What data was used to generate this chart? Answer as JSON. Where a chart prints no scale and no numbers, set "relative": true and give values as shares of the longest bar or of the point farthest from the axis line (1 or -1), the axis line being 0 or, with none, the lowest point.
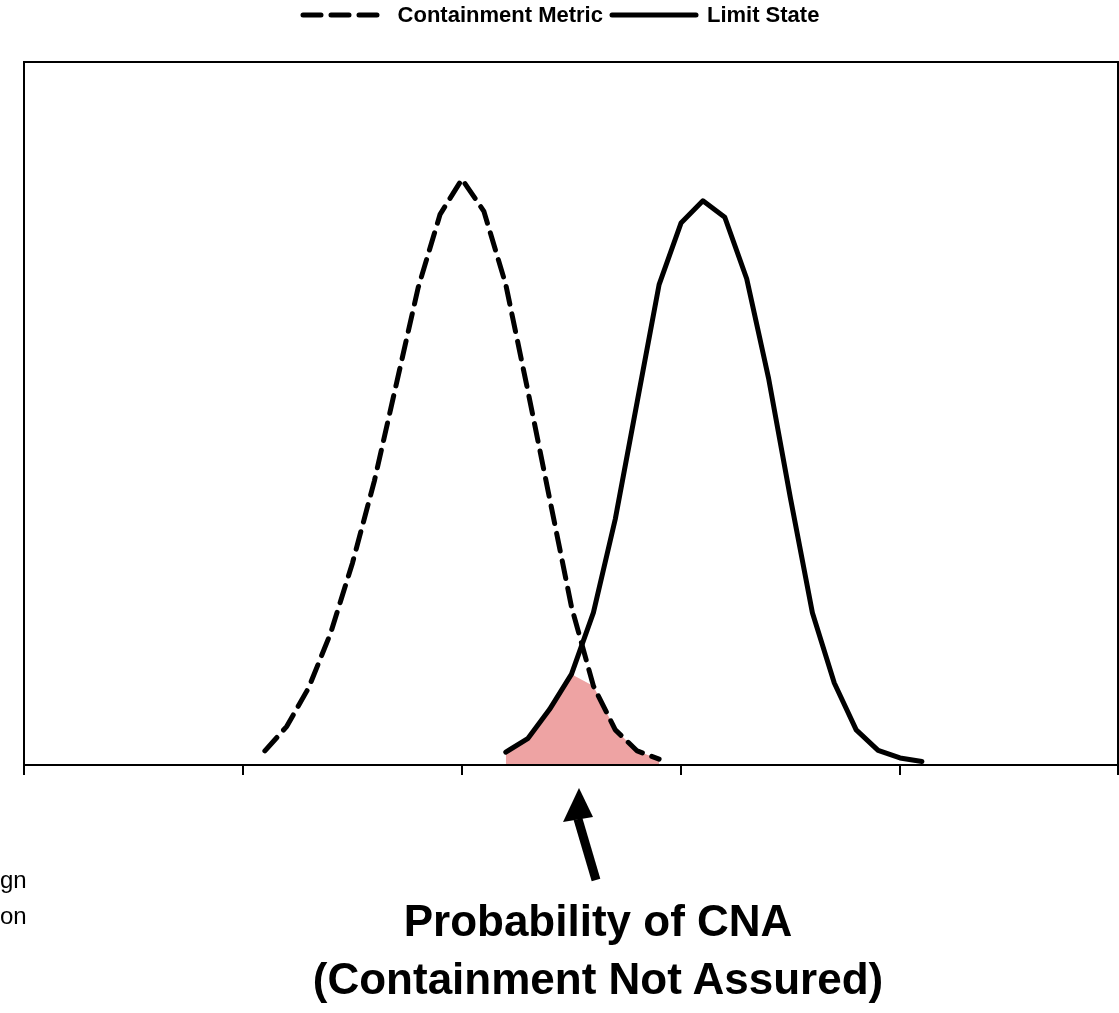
{
  "chart_data": {
    "type": "line",
    "relative": true,
    "legend": "top",
    "categories": [
      null,
      null,
      null,
      null,
      null,
      null,
      null,
      null,
      null,
      null,
      null,
      null,
      null,
      null,
      null,
      null,
      null,
      null,
      null,
      null,
      null,
      null,
      null,
      null,
      null,
      null,
      null,
      null,
      null,
      null,
      null,
      null,
      null,
      null,
      null,
      null,
      null,
      null,
      null,
      null,
      null,
      null,
      null,
      null,
      null,
      null,
      null,
      null,
      null,
      null,
      null
    ],
    "series": [
      {
        "name": "Containment Metric",
        "color": "#000000",
        "line_style": "dashed",
        "values": [
          null,
          null,
          null,
          null,
          null,
          null,
          null,
          null,
          null,
          null,
          null,
          0.024,
          0.066,
          0.132,
          0.225,
          0.345,
          0.485,
          0.65,
          0.815,
          0.94,
          1,
          0.945,
          0.82,
          0.64,
          0.455,
          0.27,
          0.135,
          0.06,
          0.024,
          0.01,
          null,
          null,
          null,
          null,
          null,
          null,
          null,
          null,
          null,
          null,
          null,
          null,
          null,
          null,
          null,
          null,
          null,
          null,
          null,
          null,
          null
        ]
      },
      {
        "name": "Limit State",
        "color": "#000000",
        "line_style": "solid",
        "values": [
          null,
          null,
          null,
          null,
          null,
          null,
          null,
          null,
          null,
          null,
          null,
          null,
          null,
          null,
          null,
          null,
          null,
          null,
          null,
          null,
          null,
          null,
          0.022,
          0.045,
          0.095,
          0.155,
          0.26,
          0.42,
          0.62,
          0.82,
          0.925,
          0.963,
          0.935,
          0.83,
          0.66,
          0.455,
          0.26,
          0.14,
          0.06,
          0.025,
          0.012,
          0.006,
          null,
          null,
          null,
          null,
          null,
          null,
          null,
          null,
          null
        ]
      },
      {
        "type": "area",
        "color": "#eea3a3",
        "values": [
          null,
          null,
          null,
          null,
          null,
          null,
          null,
          null,
          null,
          null,
          null,
          null,
          null,
          null,
          null,
          null,
          null,
          null,
          null,
          null,
          null,
          null,
          0.022,
          0.045,
          0.095,
          0.155,
          0.135,
          0.06,
          0.024,
          0.01,
          null,
          null,
          null,
          null,
          null,
          null,
          null,
          null,
          null,
          null,
          null,
          null,
          null,
          null,
          null,
          null,
          null,
          null,
          null,
          null,
          null
        ]
      }
    ],
    "annotations": [
      "Probability of CNA\n(Containment Not Assured)",
      "gn",
      "on"
    ]
  }
}
